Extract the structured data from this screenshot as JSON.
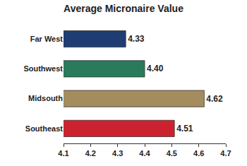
{
  "chart_data": {
    "type": "bar",
    "title": "Average Micronaire Value",
    "orientation": "horizontal",
    "categories": [
      "Far West",
      "Southwest",
      "Midsouth",
      "Southeast"
    ],
    "values": [
      4.33,
      4.4,
      4.62,
      4.51
    ],
    "value_labels": [
      "4.33",
      "4.40",
      "4.62",
      "4.51"
    ],
    "colors": [
      "#1f3c73",
      "#2a7a5c",
      "#a48c5e",
      "#cc2230"
    ],
    "xlim": [
      4.1,
      4.7
    ],
    "xticks": [
      4.1,
      4.2,
      4.3,
      4.4,
      4.5,
      4.6,
      4.7
    ],
    "grid": false,
    "data_labels": true
  }
}
